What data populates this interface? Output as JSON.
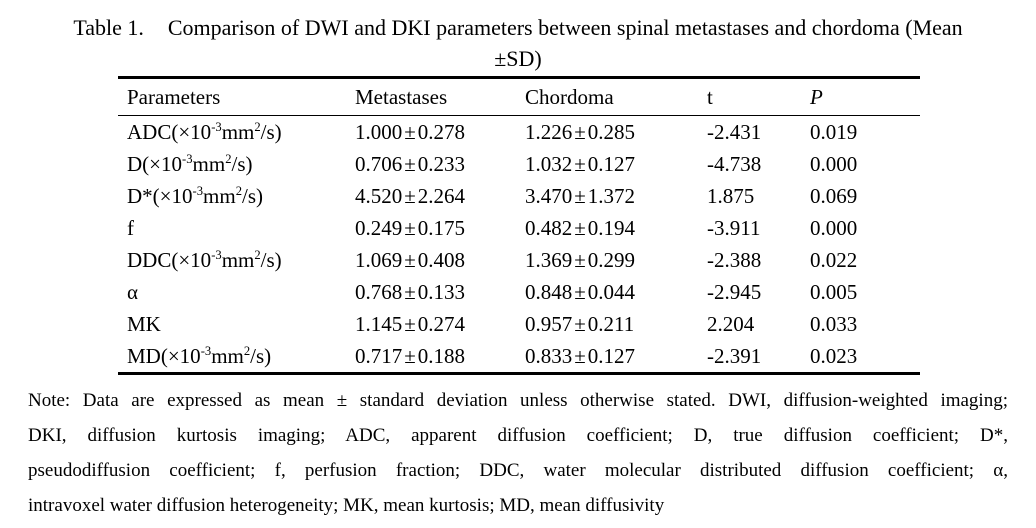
{
  "caption": {
    "label": "Table 1.",
    "line1": "Comparison of DWI and DKI parameters between spinal metastases and chordoma (Mean",
    "line2": "±SD)"
  },
  "table": {
    "headers": [
      "Parameters",
      "Metastases",
      "Chordoma",
      "t",
      "P"
    ],
    "rows": [
      {
        "parameter": [
          {
            "text": "ADC(×10"
          },
          {
            "text": "-3",
            "sup": true
          },
          {
            "text": "mm"
          },
          {
            "text": "2",
            "sup": true
          },
          {
            "text": "/s)"
          }
        ],
        "metastases": "1.000±0.278",
        "chordoma": "1.226±0.285",
        "t": "-2.431",
        "p": "0.019"
      },
      {
        "parameter": [
          {
            "text": "D(×10"
          },
          {
            "text": "-3",
            "sup": true
          },
          {
            "text": "mm"
          },
          {
            "text": "2",
            "sup": true
          },
          {
            "text": "/s)"
          }
        ],
        "metastases": "0.706±0.233",
        "chordoma": "1.032±0.127",
        "t": "-4.738",
        "p": "0.000"
      },
      {
        "parameter": [
          {
            "text": "D*(×10"
          },
          {
            "text": "-3",
            "sup": true
          },
          {
            "text": "mm"
          },
          {
            "text": "2",
            "sup": true
          },
          {
            "text": "/s)"
          }
        ],
        "metastases": "4.520±2.264",
        "chordoma": "3.470±1.372",
        "t": "1.875",
        "p": "0.069"
      },
      {
        "parameter": [
          {
            "text": "f"
          }
        ],
        "metastases": "0.249±0.175",
        "chordoma": "0.482±0.194",
        "t": "-3.911",
        "p": "0.000"
      },
      {
        "parameter": [
          {
            "text": "DDC(×10"
          },
          {
            "text": "-3",
            "sup": true
          },
          {
            "text": "mm"
          },
          {
            "text": "2",
            "sup": true
          },
          {
            "text": "/s)"
          }
        ],
        "metastases": "1.069±0.408",
        "chordoma": "1.369±0.299",
        "t": "-2.388",
        "p": "0.022"
      },
      {
        "parameter": [
          {
            "text": "α"
          }
        ],
        "metastases": "0.768±0.133",
        "chordoma": "0.848±0.044",
        "t": "-2.945",
        "p": "0.005"
      },
      {
        "parameter": [
          {
            "text": "MK"
          }
        ],
        "metastases": "1.145±0.274",
        "chordoma": "0.957±0.211",
        "t": "2.204",
        "p": "0.033"
      },
      {
        "parameter": [
          {
            "text": "MD(×10"
          },
          {
            "text": "-3",
            "sup": true
          },
          {
            "text": "mm"
          },
          {
            "text": "2",
            "sup": true
          },
          {
            "text": "/s)"
          }
        ],
        "metastases": "0.717±0.188",
        "chordoma": "0.833±0.127",
        "t": "-2.391",
        "p": "0.023"
      }
    ]
  },
  "note": {
    "lines": [
      "Note: Data are expressed as mean ± standard deviation unless otherwise stated. DWI, diffusion-weighted imaging;",
      "DKI, diffusion kurtosis imaging; ADC, apparent diffusion coefficient; D, true diffusion coefficient; D*,",
      "pseudodiffusion coefficient; f, perfusion fraction; DDC, water molecular distributed diffusion coefficient; α,",
      "intravoxel water diffusion heterogeneity; MK, mean kurtosis; MD, mean diffusivity"
    ]
  },
  "colors": {
    "text": "#000000",
    "background": "#ffffff",
    "rule": "#000000"
  }
}
